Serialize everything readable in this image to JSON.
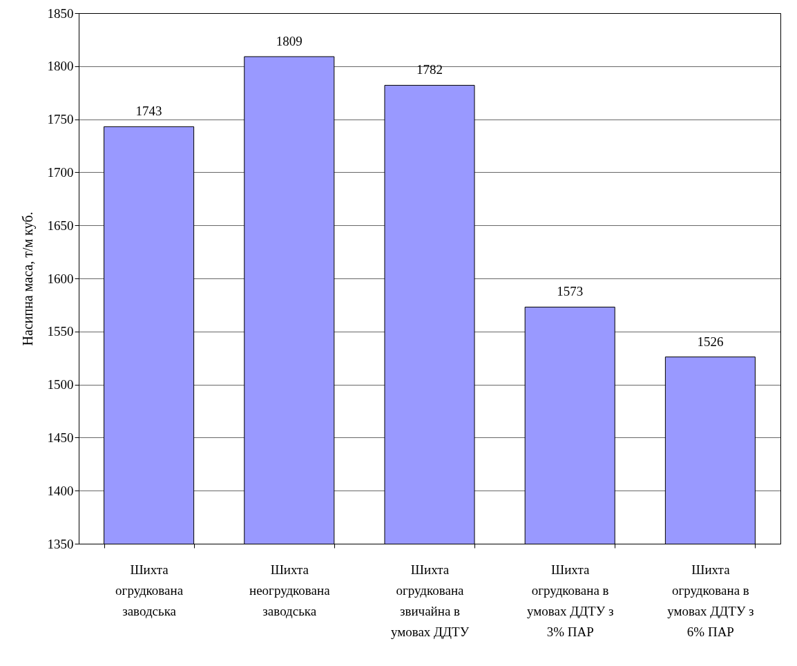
{
  "chart_data": {
    "type": "bar",
    "ylabel": "Насипна маса, т/м куб.",
    "categories": [
      "Шихта огрудкована заводська",
      "Шихта неогрудкована заводська",
      "Шихта огрудкована звичайна в умовах ДДТУ",
      "Шихта огрудкована в умовах ДДТУ з 3% ПАР",
      "Шихта огрудкована в умовах ДДТУ з 6% ПАР"
    ],
    "values": [
      1743,
      1809,
      1782,
      1573,
      1526
    ],
    "color": "#9999ff",
    "ylim": [
      1350,
      1850
    ],
    "yticks": [
      1350,
      1400,
      1450,
      1500,
      1550,
      1600,
      1650,
      1700,
      1750,
      1800,
      1850
    ],
    "grid": "y",
    "data_labels": true
  }
}
